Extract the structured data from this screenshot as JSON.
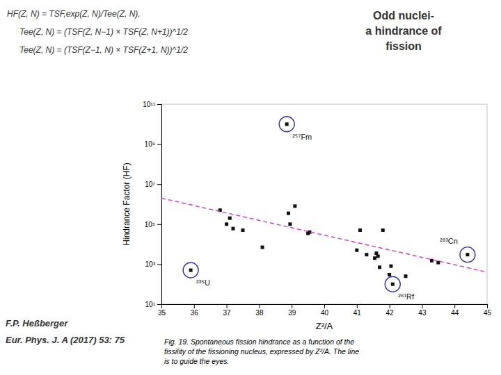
{
  "chart_data": {
    "type": "scatter",
    "xlabel": "Z²/A",
    "ylabel": "Hindrance Factor (HF)",
    "log": "y",
    "grid": false,
    "xlim": [
      35,
      45
    ],
    "ylim": [
      10,
      100000000000.0
    ],
    "xticks": [
      35,
      36,
      37,
      38,
      39,
      40,
      41,
      42,
      43,
      44,
      45
    ],
    "yticks": [
      {
        "value": 10,
        "label": "10¹"
      },
      {
        "value": 1000,
        "label": "10³"
      },
      {
        "value": 100000,
        "label": "10⁵"
      },
      {
        "value": 10000000,
        "label": "10⁷"
      },
      {
        "value": 1000000000,
        "label": "10⁹"
      },
      {
        "value": 100000000000,
        "label": "10¹¹"
      }
    ],
    "series": [
      {
        "type": "scatter",
        "marker": "square",
        "color": "#111111",
        "x": [
          35.9,
          36.8,
          37.0,
          37.1,
          37.2,
          37.5,
          38.1,
          38.9,
          38.95,
          39.1,
          39.5,
          39.55,
          38.85,
          41.0,
          41.1,
          41.3,
          41.55,
          41.6,
          41.65,
          41.7,
          41.8,
          42.0,
          42.05,
          42.1,
          42.5,
          43.3,
          43.5,
          44.4
        ],
        "values": [
          500,
          500000.0,
          100000.0,
          200000.0,
          60000.0,
          50000.0,
          7000,
          350000.0,
          100000.0,
          800000.0,
          35000.0,
          40000.0,
          10000000000.0,
          5000,
          50000.0,
          3000,
          2000,
          3500,
          2500,
          700,
          50000.0,
          300,
          800,
          100,
          250,
          1500,
          1200,
          3000
        ]
      },
      {
        "type": "line",
        "line_style": "dashed",
        "color": "#cc44cc",
        "x": [
          35,
          45
        ],
        "values": [
          2000000.0,
          400.0
        ]
      }
    ],
    "annotations": [
      {
        "text": "²³⁵U",
        "x": 35.9,
        "y": 500,
        "color": "#3333aa"
      },
      {
        "text": "²⁵⁷Fm",
        "x": 38.85,
        "y": 10000000000.0,
        "color": "#3333aa"
      },
      {
        "text": "²⁶¹Rf",
        "x": 42.1,
        "y": 100,
        "color": "#3333aa"
      },
      {
        "text": "²⁸³Cn",
        "x": 44.4,
        "y": 3000,
        "color": "#3333aa"
      }
    ],
    "formulas": [
      "HF(Z, N) = TSF,exp(Z, N)/Tee(Z, N),",
      "Tee(Z, N) = (TSF(Z, N−1) × TSF(Z, N+1))^1/2",
      "Tee(Z, N) = (TSF(Z−1, N) × TSF(Z+1, N))^1/2"
    ],
    "side_text": "Odd nuclei-\na hindrance of\nfission",
    "author": [
      "F.P. Heßberger",
      "Eur. Phys. J. A (2017) 53: 75"
    ],
    "caption": "Fig. 19. Spontaneous fission hindrance as a function of the\nfissility of the fissioning nucleus, expressed by Z²/A. The line\nis to guide the eyes."
  }
}
